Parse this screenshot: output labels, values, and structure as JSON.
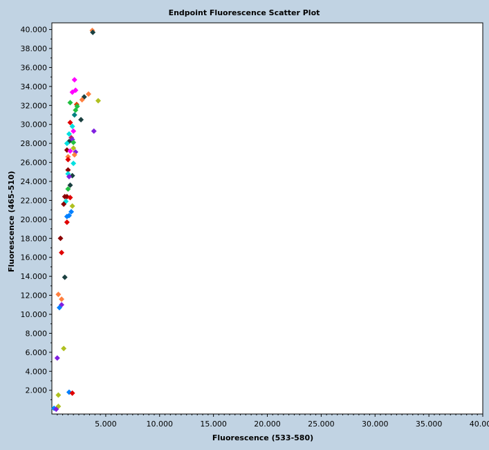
{
  "chart_data": {
    "type": "scatter",
    "title": "Endpoint Fluorescence Scatter Plot",
    "xlabel": "Fluorescence (533-580)",
    "ylabel": "Fluorescence (465-510)",
    "xlim": [
      0,
      40
    ],
    "ylim": [
      -0.5,
      40.7
    ],
    "x_ticks": [
      5,
      10,
      15,
      20,
      25,
      30,
      35,
      40
    ],
    "x_tick_labels": [
      "5.000",
      "10.000",
      "15.000",
      "20.000",
      "25.000",
      "30.000",
      "35.000",
      "40.000"
    ],
    "y_ticks": [
      2,
      4,
      6,
      8,
      10,
      12,
      14,
      16,
      18,
      20,
      22,
      24,
      26,
      28,
      30,
      32,
      34,
      36,
      38,
      40
    ],
    "y_tick_labels": [
      "2.000",
      "4.000",
      "6.000",
      "8.000",
      "10.000",
      "12.000",
      "14.000",
      "16.000",
      "18.000",
      "20.000",
      "22.000",
      "24.000",
      "26.000",
      "28.000",
      "30.000",
      "32.000",
      "34.000",
      "36.000",
      "38.000",
      "40.000"
    ],
    "grid": false,
    "colors": {
      "background": "#c1d3e3",
      "plot_area": "#ffffff",
      "axis": "#000000"
    },
    "points": [
      {
        "x": 3.75,
        "y": 39.9,
        "color": "#ff8040"
      },
      {
        "x": 3.8,
        "y": 39.7,
        "color": "#1a4040"
      },
      {
        "x": 2.1,
        "y": 34.7,
        "color": "#ff00ff"
      },
      {
        "x": 2.2,
        "y": 33.6,
        "color": "#ff00ff"
      },
      {
        "x": 1.9,
        "y": 33.4,
        "color": "#ff00ff"
      },
      {
        "x": 3.4,
        "y": 33.2,
        "color": "#ff8040"
      },
      {
        "x": 3.0,
        "y": 32.9,
        "color": "#1a4040"
      },
      {
        "x": 2.8,
        "y": 32.6,
        "color": "#ff8040"
      },
      {
        "x": 4.3,
        "y": 32.5,
        "color": "#b0c020"
      },
      {
        "x": 1.7,
        "y": 32.3,
        "color": "#22c040"
      },
      {
        "x": 2.3,
        "y": 32.1,
        "color": "#e04000"
      },
      {
        "x": 2.35,
        "y": 31.9,
        "color": "#22c040"
      },
      {
        "x": 2.2,
        "y": 31.5,
        "color": "#22c040"
      },
      {
        "x": 2.1,
        "y": 31.0,
        "color": "#008080"
      },
      {
        "x": 2.7,
        "y": 30.5,
        "color": "#1a4040"
      },
      {
        "x": 1.7,
        "y": 30.2,
        "color": "#e00000"
      },
      {
        "x": 1.9,
        "y": 29.8,
        "color": "#00e0e0"
      },
      {
        "x": 2.0,
        "y": 29.3,
        "color": "#ff00ff"
      },
      {
        "x": 3.9,
        "y": 29.3,
        "color": "#8020e0"
      },
      {
        "x": 1.6,
        "y": 29.0,
        "color": "#00e0e0"
      },
      {
        "x": 1.8,
        "y": 28.6,
        "color": "#c02060"
      },
      {
        "x": 1.9,
        "y": 28.4,
        "color": "#8020e0"
      },
      {
        "x": 1.6,
        "y": 28.2,
        "color": "#1a4040"
      },
      {
        "x": 2.0,
        "y": 28.1,
        "color": "#22c040"
      },
      {
        "x": 1.4,
        "y": 28.0,
        "color": "#00e0e0"
      },
      {
        "x": 2.0,
        "y": 27.5,
        "color": "#b0c020"
      },
      {
        "x": 1.4,
        "y": 27.3,
        "color": "#8b0000"
      },
      {
        "x": 1.7,
        "y": 27.2,
        "color": "#ff00ff"
      },
      {
        "x": 2.2,
        "y": 27.1,
        "color": "#8020e0"
      },
      {
        "x": 2.1,
        "y": 26.8,
        "color": "#ff8040"
      },
      {
        "x": 1.5,
        "y": 26.6,
        "color": "#ff8040"
      },
      {
        "x": 1.5,
        "y": 26.3,
        "color": "#e00000"
      },
      {
        "x": 2.0,
        "y": 25.9,
        "color": "#00e0e0"
      },
      {
        "x": 1.5,
        "y": 25.2,
        "color": "#8b0000"
      },
      {
        "x": 1.5,
        "y": 24.8,
        "color": "#00e0e0"
      },
      {
        "x": 1.9,
        "y": 24.6,
        "color": "#1a4040"
      },
      {
        "x": 1.6,
        "y": 24.5,
        "color": "#8020e0"
      },
      {
        "x": 1.7,
        "y": 23.6,
        "color": "#1a4040"
      },
      {
        "x": 1.5,
        "y": 23.2,
        "color": "#22c040"
      },
      {
        "x": 1.2,
        "y": 22.4,
        "color": "#8b0000"
      },
      {
        "x": 1.4,
        "y": 22.4,
        "color": "#8b0000"
      },
      {
        "x": 1.7,
        "y": 22.3,
        "color": "#e00000"
      },
      {
        "x": 1.3,
        "y": 21.9,
        "color": "#00e0e0"
      },
      {
        "x": 1.1,
        "y": 21.6,
        "color": "#8b0000"
      },
      {
        "x": 1.9,
        "y": 21.4,
        "color": "#b0c020"
      },
      {
        "x": 1.8,
        "y": 20.8,
        "color": "#0080ff"
      },
      {
        "x": 1.6,
        "y": 20.4,
        "color": "#0080ff"
      },
      {
        "x": 1.4,
        "y": 20.3,
        "color": "#0080ff"
      },
      {
        "x": 1.4,
        "y": 19.7,
        "color": "#e00000"
      },
      {
        "x": 0.8,
        "y": 18.0,
        "color": "#8b0000"
      },
      {
        "x": 0.9,
        "y": 16.5,
        "color": "#e00000"
      },
      {
        "x": 1.2,
        "y": 13.9,
        "color": "#1a4040"
      },
      {
        "x": 0.6,
        "y": 12.1,
        "color": "#ff8040"
      },
      {
        "x": 0.9,
        "y": 11.6,
        "color": "#ff8040"
      },
      {
        "x": 0.9,
        "y": 11.0,
        "color": "#8020e0"
      },
      {
        "x": 0.7,
        "y": 10.7,
        "color": "#0080ff"
      },
      {
        "x": 1.1,
        "y": 6.4,
        "color": "#b0c020"
      },
      {
        "x": 0.5,
        "y": 5.4,
        "color": "#8020e0"
      },
      {
        "x": 1.6,
        "y": 1.8,
        "color": "#0080ff"
      },
      {
        "x": 1.9,
        "y": 1.7,
        "color": "#e00000"
      },
      {
        "x": 0.6,
        "y": 1.5,
        "color": "#b0c020"
      },
      {
        "x": 0.6,
        "y": 0.3,
        "color": "#b0c020"
      },
      {
        "x": 0.2,
        "y": 0.1,
        "color": "#0080ff"
      },
      {
        "x": 0.4,
        "y": 0.0,
        "color": "#8020e0"
      }
    ]
  }
}
